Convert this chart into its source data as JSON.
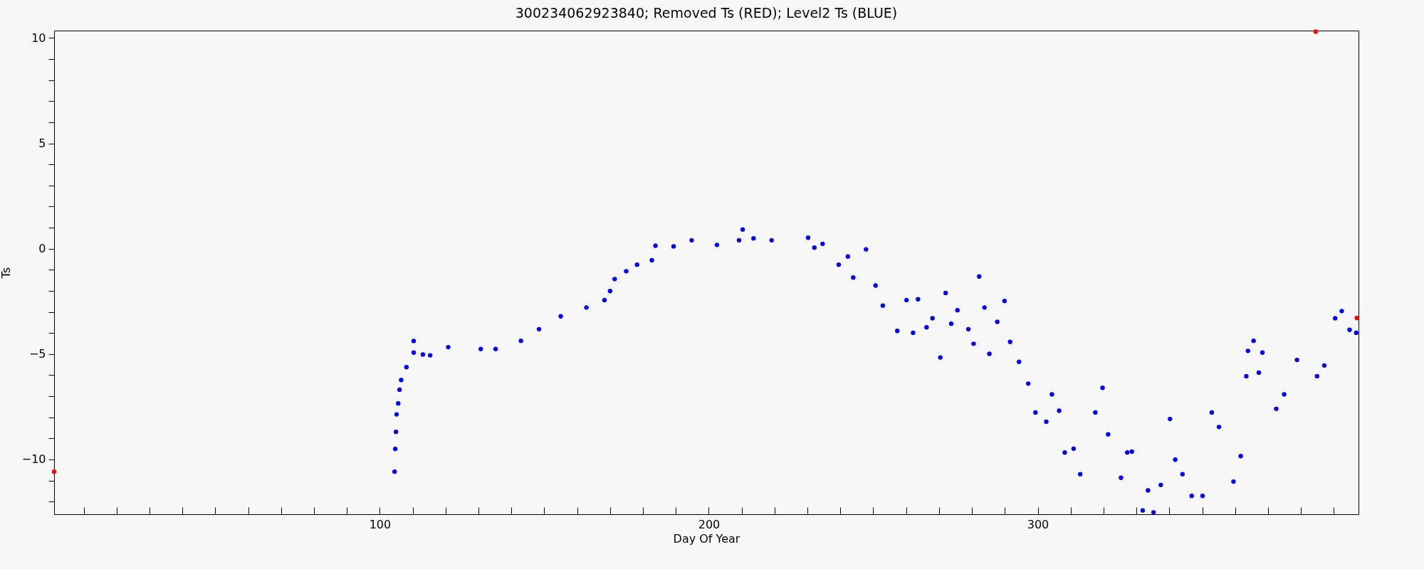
{
  "chart_data": {
    "type": "scatter",
    "title": "300234062923840; Removed Ts (RED); Level2 Ts (BLUE)",
    "xlabel": "Day Of Year",
    "ylabel": "Ts",
    "marker": "circle",
    "xlim": [
      1,
      397.5
    ],
    "ylim": [
      -12.6,
      10.35
    ],
    "xticks": [
      {
        "value": 10,
        "label": null
      },
      {
        "value": 20,
        "label": null
      },
      {
        "value": 30,
        "label": null
      },
      {
        "value": 40,
        "label": null
      },
      {
        "value": 50,
        "label": null
      },
      {
        "value": 60,
        "label": null
      },
      {
        "value": 70,
        "label": null
      },
      {
        "value": 80,
        "label": null
      },
      {
        "value": 90,
        "label": null
      },
      100,
      {
        "value": 110,
        "label": null
      },
      {
        "value": 120,
        "label": null
      },
      {
        "value": 130,
        "label": null
      },
      {
        "value": 140,
        "label": null
      },
      {
        "value": 150,
        "label": null
      },
      {
        "value": 160,
        "label": null
      },
      {
        "value": 170,
        "label": null
      },
      {
        "value": 180,
        "label": null
      },
      {
        "value": 190,
        "label": null
      },
      200,
      {
        "value": 210,
        "label": null
      },
      {
        "value": 220,
        "label": null
      },
      {
        "value": 230,
        "label": null
      },
      {
        "value": 240,
        "label": null
      },
      {
        "value": 250,
        "label": null
      },
      {
        "value": 260,
        "label": null
      },
      {
        "value": 270,
        "label": null
      },
      {
        "value": 280,
        "label": null
      },
      {
        "value": 290,
        "label": null
      },
      300,
      {
        "value": 310,
        "label": null
      },
      {
        "value": 320,
        "label": null
      },
      {
        "value": 330,
        "label": null
      },
      {
        "value": 340,
        "label": null
      },
      {
        "value": 350,
        "label": null
      },
      {
        "value": 360,
        "label": null
      },
      {
        "value": 370,
        "label": null
      },
      {
        "value": 380,
        "label": null
      },
      {
        "value": 390,
        "label": null
      }
    ],
    "yticks": [
      {
        "value": -12,
        "label": null
      },
      {
        "value": -11,
        "label": null
      },
      {
        "value": -10,
        "label": "−10"
      },
      {
        "value": -9,
        "label": null
      },
      {
        "value": -8,
        "label": null
      },
      {
        "value": -7,
        "label": null
      },
      {
        "value": -6,
        "label": null
      },
      {
        "value": -5,
        "label": "−5"
      },
      {
        "value": -4,
        "label": null
      },
      {
        "value": -3,
        "label": null
      },
      {
        "value": -2,
        "label": null
      },
      {
        "value": -1,
        "label": null
      },
      0,
      {
        "value": 1,
        "label": null
      },
      {
        "value": 2,
        "label": null
      },
      {
        "value": 3,
        "label": null
      },
      {
        "value": 4,
        "label": null
      },
      5,
      {
        "value": 6,
        "label": null
      },
      {
        "value": 7,
        "label": null
      },
      {
        "value": 8,
        "label": null
      },
      {
        "value": 9,
        "label": null
      },
      10
    ],
    "series": [
      {
        "color": "#ff0000",
        "x": [
          1,
          384.5,
          397
        ],
        "values": [
          -10.58,
          10.3,
          -3.29
        ]
      },
      {
        "color": "#0000ff",
        "x": [
          104.5,
          104.7,
          104.9,
          105.1,
          105.6,
          106.0,
          106.5,
          108.1,
          110.3,
          110.3,
          113.1,
          115.3,
          120.8,
          130.7,
          135.2,
          142.9,
          148.4,
          155.0,
          162.8,
          168.3,
          170.0,
          171.4,
          174.9,
          178.2,
          182.7,
          183.8,
          189.3,
          194.8,
          202.5,
          209.2,
          210.3,
          213.6,
          219.1,
          230.2,
          232.1,
          234.6,
          239.5,
          242.3,
          243.9,
          247.8,
          250.7,
          252.9,
          257.3,
          260.1,
          262.1,
          263.6,
          266.2,
          268.0,
          270.4,
          272.0,
          273.7,
          275.6,
          278.9,
          280.5,
          282.2,
          283.8,
          285.3,
          287.7,
          289.9,
          291.6,
          294.3,
          297.1,
          299.3,
          302.6,
          304.3,
          306.5,
          308.2,
          310.9,
          312.9,
          317.5,
          319.7,
          321.4,
          325.3,
          327.2,
          328.6,
          331.9,
          333.5,
          335.2,
          337.4,
          340.2,
          341.8,
          344.0,
          346.8,
          350.1,
          352.9,
          355.1,
          359.5,
          361.7,
          363.4,
          363.9,
          365.6,
          367.2,
          368.3,
          372.5,
          374.9,
          378.8,
          384.9,
          387.1,
          390.4,
          392.4,
          394.8,
          396.8
        ],
        "values": [
          -10.58,
          -9.5,
          -8.69,
          -7.86,
          -7.34,
          -6.69,
          -6.23,
          -5.62,
          -4.93,
          -4.38,
          -5.02,
          -5.06,
          -4.67,
          -4.76,
          -4.76,
          -4.37,
          -3.82,
          -3.21,
          -2.79,
          -2.44,
          -2.01,
          -1.44,
          -1.07,
          -0.76,
          -0.55,
          0.14,
          0.11,
          0.4,
          0.18,
          0.4,
          0.91,
          0.49,
          0.4,
          0.52,
          0.05,
          0.23,
          -0.76,
          -0.37,
          -1.37,
          -0.03,
          -1.75,
          -2.7,
          -3.9,
          -2.44,
          -3.99,
          -2.4,
          -3.73,
          -3.3,
          -5.16,
          -2.1,
          -3.56,
          -2.92,
          -3.82,
          -4.51,
          -1.32,
          -2.79,
          -4.99,
          -3.47,
          -2.48,
          -4.42,
          -5.37,
          -6.4,
          -7.77,
          -8.21,
          -6.91,
          -7.69,
          -9.67,
          -9.49,
          -10.7,
          -7.77,
          -6.6,
          -8.81,
          -10.87,
          -9.67,
          -9.63,
          -12.42,
          -11.47,
          -12.51,
          -11.21,
          -8.08,
          -10.01,
          -10.7,
          -11.73,
          -11.73,
          -7.77,
          -8.46,
          -11.05,
          -9.84,
          -6.05,
          -4.85,
          -4.37,
          -5.88,
          -4.93,
          -7.6,
          -6.91,
          -5.28,
          -6.05,
          -5.54,
          -3.3,
          -2.96,
          -3.85,
          -3.99
        ]
      }
    ]
  }
}
